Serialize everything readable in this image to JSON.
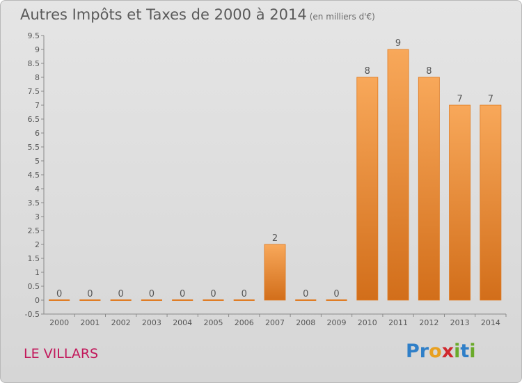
{
  "header": {
    "title": "Autres Impôts et Taxes de 2000 à 2014",
    "subtitle": "(en milliers d'€)"
  },
  "footer": {
    "place": "LE VILLARS"
  },
  "brand": {
    "name": "Proxiti",
    "letters": [
      {
        "ch": "P",
        "color": "#2f7fc8"
      },
      {
        "ch": "r",
        "color": "#2f7fc8"
      },
      {
        "ch": "o",
        "color": "#e8a020"
      },
      {
        "ch": "x",
        "color": "#d0282e"
      },
      {
        "ch": "i",
        "color": "#6aaa2a"
      },
      {
        "ch": "t",
        "color": "#2f7fc8"
      },
      {
        "ch": "i",
        "color": "#6aaa2a"
      }
    ]
  },
  "chart_data": {
    "type": "bar",
    "title": "Autres Impôts et Taxes de 2000 à 2014",
    "subtitle": "(en milliers d'€)",
    "categories": [
      "2000",
      "2001",
      "2002",
      "2003",
      "2004",
      "2005",
      "2006",
      "2007",
      "2008",
      "2009",
      "2010",
      "2011",
      "2012",
      "2013",
      "2014"
    ],
    "values": [
      0,
      0,
      0,
      0,
      0,
      0,
      0,
      2,
      0,
      0,
      8,
      9,
      8,
      7,
      7
    ],
    "data_labels": [
      "0",
      "0",
      "0",
      "0",
      "0",
      "0",
      "0",
      "2",
      "0",
      "0",
      "8",
      "9",
      "8",
      "7",
      "7"
    ],
    "y_ticks": [
      "-0.5",
      "0",
      "0.5",
      "1",
      "1.5",
      "2",
      "2.5",
      "3",
      "3.5",
      "4",
      "4.5",
      "5",
      "5.5",
      "6",
      "6.5",
      "7",
      "7.5",
      "8",
      "8.5",
      "9",
      "9.5"
    ],
    "ylim": [
      -0.5,
      9.5
    ],
    "grid": false,
    "colors": {
      "bar_top": "#f8a85a",
      "bar_bottom": "#d26e1a",
      "bar_edge": "#e07a20"
    }
  }
}
